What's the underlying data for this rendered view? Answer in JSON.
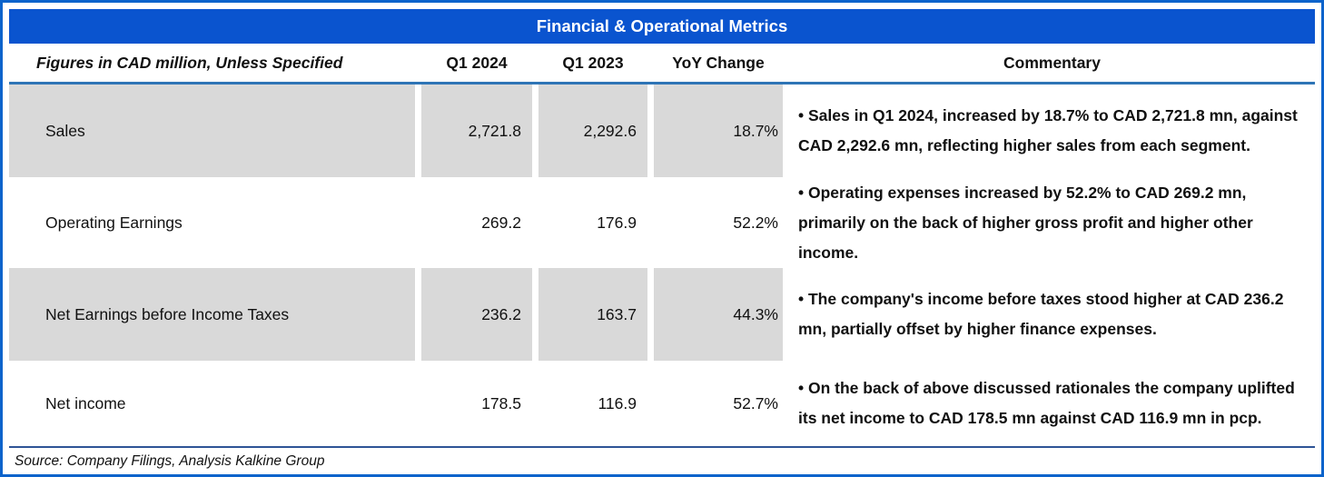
{
  "title": "Financial & Operational Metrics",
  "columns": {
    "label": "Figures in CAD million, Unless Specified",
    "q1_2024": "Q1 2024",
    "q1_2023": "Q1 2023",
    "yoy": "YoY Change",
    "commentary": "Commentary"
  },
  "rows": [
    {
      "label": "Sales",
      "q1_2024": "2,721.8",
      "q1_2023": "2,292.6",
      "yoy": "18.7%",
      "commentary": "• Sales in Q1 2024, increased by 18.7% to CAD 2,721.8 mn, against CAD 2,292.6 mn, reflecting higher sales from each segment."
    },
    {
      "label": "Operating Earnings",
      "q1_2024": "269.2",
      "q1_2023": "176.9",
      "yoy": "52.2%",
      "commentary": "• Operating expenses increased by 52.2% to CAD 269.2 mn, primarily on the back of higher gross profit and higher other income."
    },
    {
      "label": "Net Earnings before Income Taxes",
      "q1_2024": "236.2",
      "q1_2023": "163.7",
      "yoy": "44.3%",
      "commentary": "• The company's income before taxes stood higher at CAD 236.2 mn, partially offset by higher finance expenses."
    },
    {
      "label": "Net income",
      "q1_2024": "178.5",
      "q1_2023": "116.9",
      "yoy": "52.7%",
      "commentary": "• On the back of above discussed rationales the company uplifted its net income to CAD 178.5 mn against CAD 116.9 mn in pcp."
    }
  ],
  "source": "Source: Company Filings, Analysis Kalkine Group",
  "colors": {
    "frame_border": "#0b63cb",
    "title_bar": "#0a54cf",
    "header_underline": "#2e75b6",
    "source_divider": "#2f5496",
    "row_shade": "#d9d9d9"
  },
  "chart_data": {
    "type": "table",
    "title": "Financial & Operational Metrics",
    "unit_note": "Figures in CAD million, Unless Specified",
    "categories": [
      "Sales",
      "Operating Earnings",
      "Net Earnings before Income Taxes",
      "Net income"
    ],
    "series": [
      {
        "name": "Q1 2024",
        "values": [
          2721.8,
          269.2,
          236.2,
          178.5
        ]
      },
      {
        "name": "Q1 2023",
        "values": [
          2292.6,
          176.9,
          163.7,
          116.9
        ]
      },
      {
        "name": "YoY Change",
        "values": [
          "18.7%",
          "52.2%",
          "44.3%",
          "52.7%"
        ]
      }
    ]
  }
}
